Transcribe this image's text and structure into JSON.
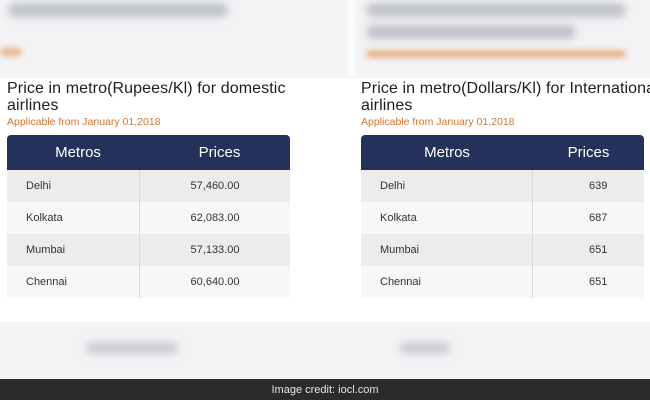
{
  "left_panel": {
    "heading": "Price in metro(Rupees/Kl) for domestic airlines",
    "subheading": "Applicable from January 01,2018",
    "columns": [
      "Metros",
      "Prices"
    ],
    "rows": [
      [
        "Delhi",
        "57,460.00"
      ],
      [
        "Kolkata",
        "62,083.00"
      ],
      [
        "Mumbai",
        "57,133.00"
      ],
      [
        "Chennai",
        "60,640.00"
      ]
    ]
  },
  "right_panel": {
    "heading": "Price in metro(Dollars/Kl) for International airlines",
    "subheading": "Applicable from January 01,2018",
    "columns": [
      "Metros",
      "Prices"
    ],
    "rows": [
      [
        "Delhi",
        "639"
      ],
      [
        "Kolkata",
        "687"
      ],
      [
        "Mumbai",
        "651"
      ],
      [
        "Chennai",
        "651"
      ]
    ]
  },
  "credit": "Image credit: iocl.com",
  "colors": {
    "header_bg": "#24325b",
    "accent_orange": "#d5732b",
    "credit_bg": "#2b2b2b"
  }
}
